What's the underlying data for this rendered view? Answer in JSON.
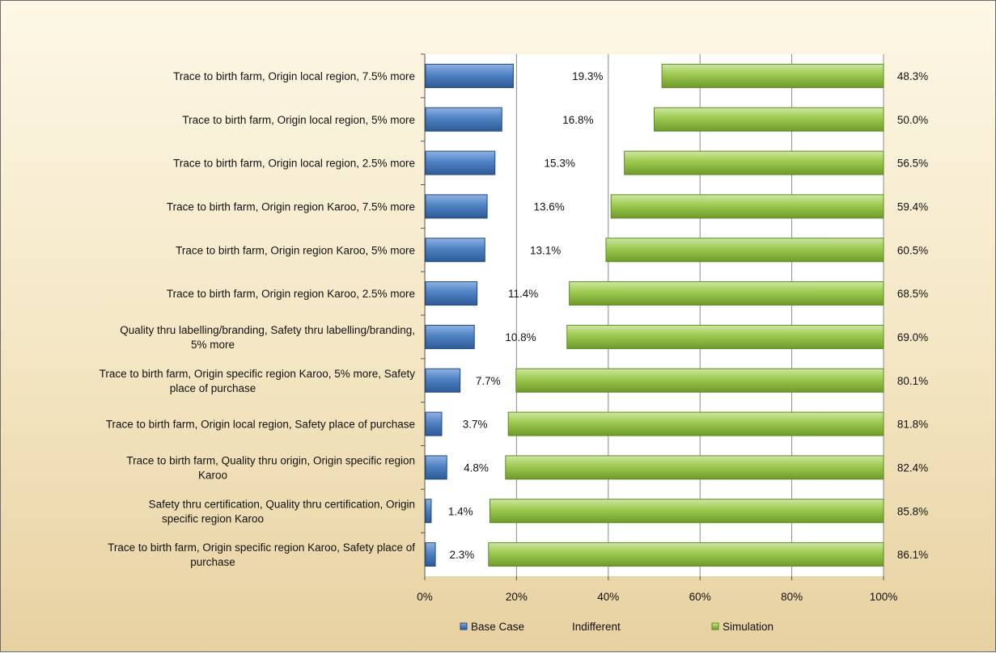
{
  "chart_data": {
    "type": "bar",
    "orientation": "horizontal",
    "stacked": true,
    "categories": [
      "Trace to birth farm, Origin local region, 7.5% more",
      "Trace to birth farm, Origin local region, 5% more",
      "Trace to birth farm, Origin local region, 2.5% more",
      "Trace to birth farm, Origin region Karoo, 7.5% more",
      "Trace to birth farm, Origin region Karoo, 5% more",
      "Trace to birth farm, Origin region Karoo, 2.5% more",
      "Quality thru labelling/branding, Safety thru labelling/branding, 5% more",
      "Trace to birth farm, Origin specific region Karoo, 5% more, Safety place of purchase",
      "Trace to birth farm, Origin local region, Safety place of purchase",
      "Trace to birth farm, Quality thru origin, Origin specific region Karoo",
      "Safety thru certification, Quality thru certification, Origin specific region Karoo",
      "Trace to birth farm, Origin specific region Karoo, Safety place of purchase"
    ],
    "series": [
      {
        "name": "Base Case",
        "color": "#4a7cc0",
        "values": [
          19.3,
          16.8,
          15.3,
          13.6,
          13.1,
          11.4,
          10.8,
          7.7,
          3.7,
          4.8,
          1.4,
          2.3
        ],
        "labels": [
          "19.3%",
          "16.8%",
          "15.3%",
          "13.6%",
          "13.1%",
          "11.4%",
          "10.8%",
          "7.7%",
          "3.7%",
          "4.8%",
          "1.4%",
          "2.3%"
        ]
      },
      {
        "name": "Indifferent",
        "color": "none",
        "values": [
          32.4,
          33.2,
          28.2,
          27.0,
          26.4,
          20.1,
          20.2,
          12.2,
          14.5,
          12.8,
          12.8,
          11.6
        ]
      },
      {
        "name": "Simulation",
        "color": "#9bc94e",
        "values": [
          48.3,
          50.0,
          56.5,
          59.4,
          60.5,
          68.5,
          69.0,
          80.1,
          81.8,
          82.4,
          85.8,
          86.1
        ],
        "labels": [
          "48.3%",
          "50.0%",
          "56.5%",
          "59.4%",
          "60.5%",
          "68.5%",
          "69.0%",
          "80.1%",
          "81.8%",
          "82.4%",
          "85.8%",
          "86.1%"
        ]
      }
    ],
    "x_ticks": [
      "0%",
      "20%",
      "40%",
      "60%",
      "80%",
      "100%"
    ],
    "xlim": [
      0,
      100
    ],
    "grid": true,
    "legend_position": "bottom"
  }
}
